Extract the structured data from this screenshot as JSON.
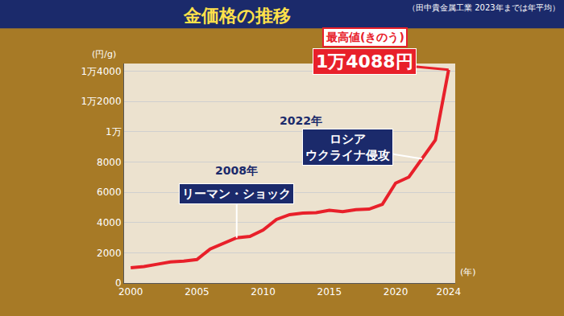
{
  "chart_data": {
    "type": "line",
    "title": "金価格の推移",
    "subtitle": "（田中貴金属工業 2023年までは年平均）",
    "x": [
      2000,
      2001,
      2002,
      2003,
      2004,
      2005,
      2006,
      2007,
      2008,
      2009,
      2010,
      2011,
      2012,
      2013,
      2014,
      2015,
      2016,
      2017,
      2018,
      2019,
      2020,
      2021,
      2022,
      2023,
      2024
    ],
    "values": [
      1014,
      1090,
      1240,
      1390,
      1450,
      1550,
      2250,
      2600,
      2990,
      3080,
      3500,
      4200,
      4520,
      4620,
      4650,
      4800,
      4720,
      4850,
      4880,
      5200,
      6600,
      7000,
      8200,
      9450,
      14088
    ],
    "color": "#e8202a",
    "xlim": [
      1999.5,
      2024.5
    ],
    "xticks": [
      2000,
      2005,
      2010,
      2015,
      2020,
      2024
    ],
    "ylim": [
      0,
      14500
    ],
    "yticks": [
      0,
      2000,
      4000,
      6000,
      8000,
      {
        "value": 10000,
        "label": "1万"
      },
      {
        "value": 12000,
        "label": "1万2000"
      },
      {
        "value": 14000,
        "label": "1万4000"
      }
    ],
    "x_label": "(年)",
    "y_label": "(円/g)",
    "grid": true,
    "annotations": [
      {
        "x": 2008,
        "label": "2008年",
        "text": [
          "リーマン・ショック"
        ]
      },
      {
        "x": 2022,
        "label": "2022年",
        "text": [
          "ロシア",
          "ウクライナ侵攻"
        ]
      },
      {
        "x": 2024,
        "label": "最高値(きのう)",
        "text": [
          "1万4088円"
        ]
      }
    ]
  }
}
